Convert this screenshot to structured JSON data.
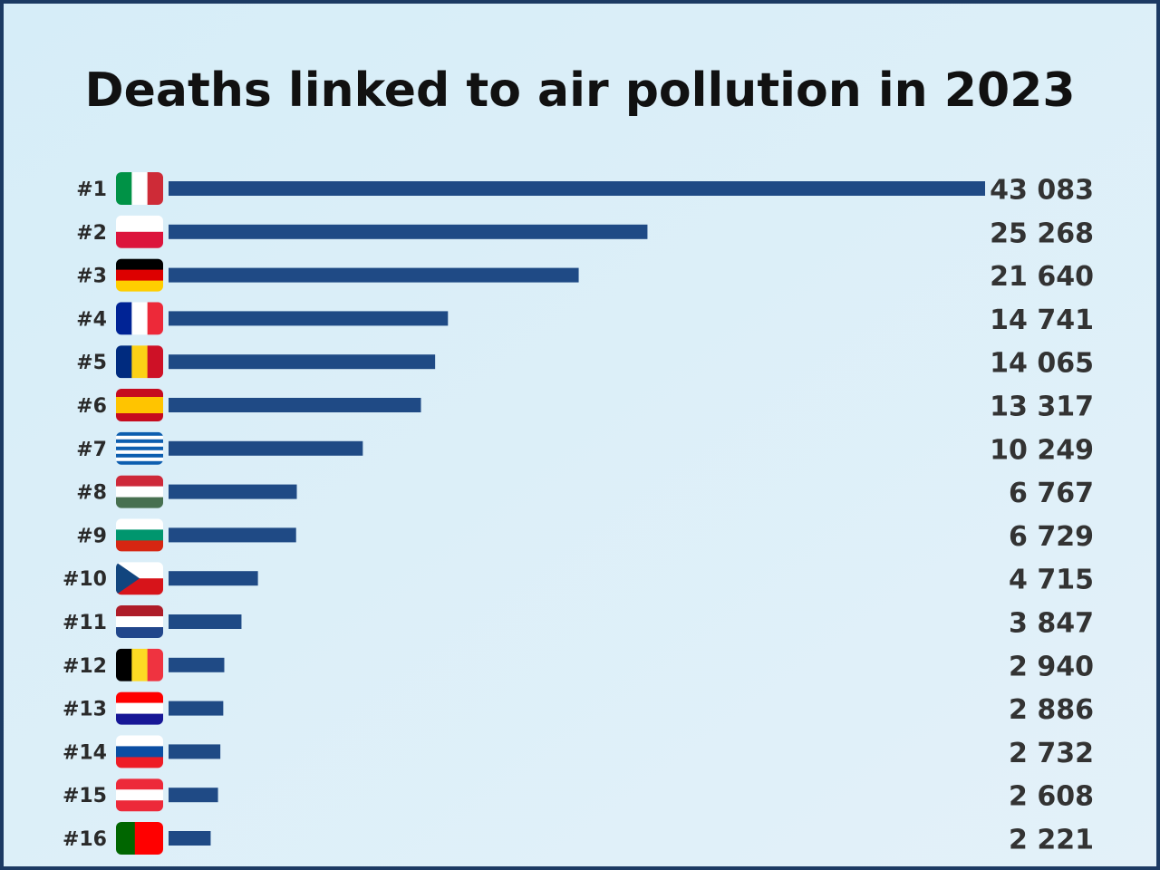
{
  "chart_data": {
    "type": "bar",
    "orientation": "horizontal",
    "title": "Deaths linked to air pollution in 2023",
    "categories": [
      "#1",
      "#2",
      "#3",
      "#4",
      "#5",
      "#6",
      "#7",
      "#8",
      "#9",
      "#10",
      "#11",
      "#12",
      "#13",
      "#14",
      "#15",
      "#16"
    ],
    "values": [
      43083,
      25268,
      21640,
      14741,
      14065,
      13317,
      10249,
      6767,
      6729,
      4715,
      3847,
      2940,
      2886,
      2732,
      2608,
      2221
    ],
    "value_labels": [
      "43 083",
      "25 268",
      "21 640",
      "14 741",
      "14 065",
      "13 317",
      "10 249",
      "6 767",
      "6 729",
      "4 715",
      "3 847",
      "2 940",
      "2 886",
      "2 732",
      "2 608",
      "2 221"
    ],
    "color": "#1f4a85"
  }
}
